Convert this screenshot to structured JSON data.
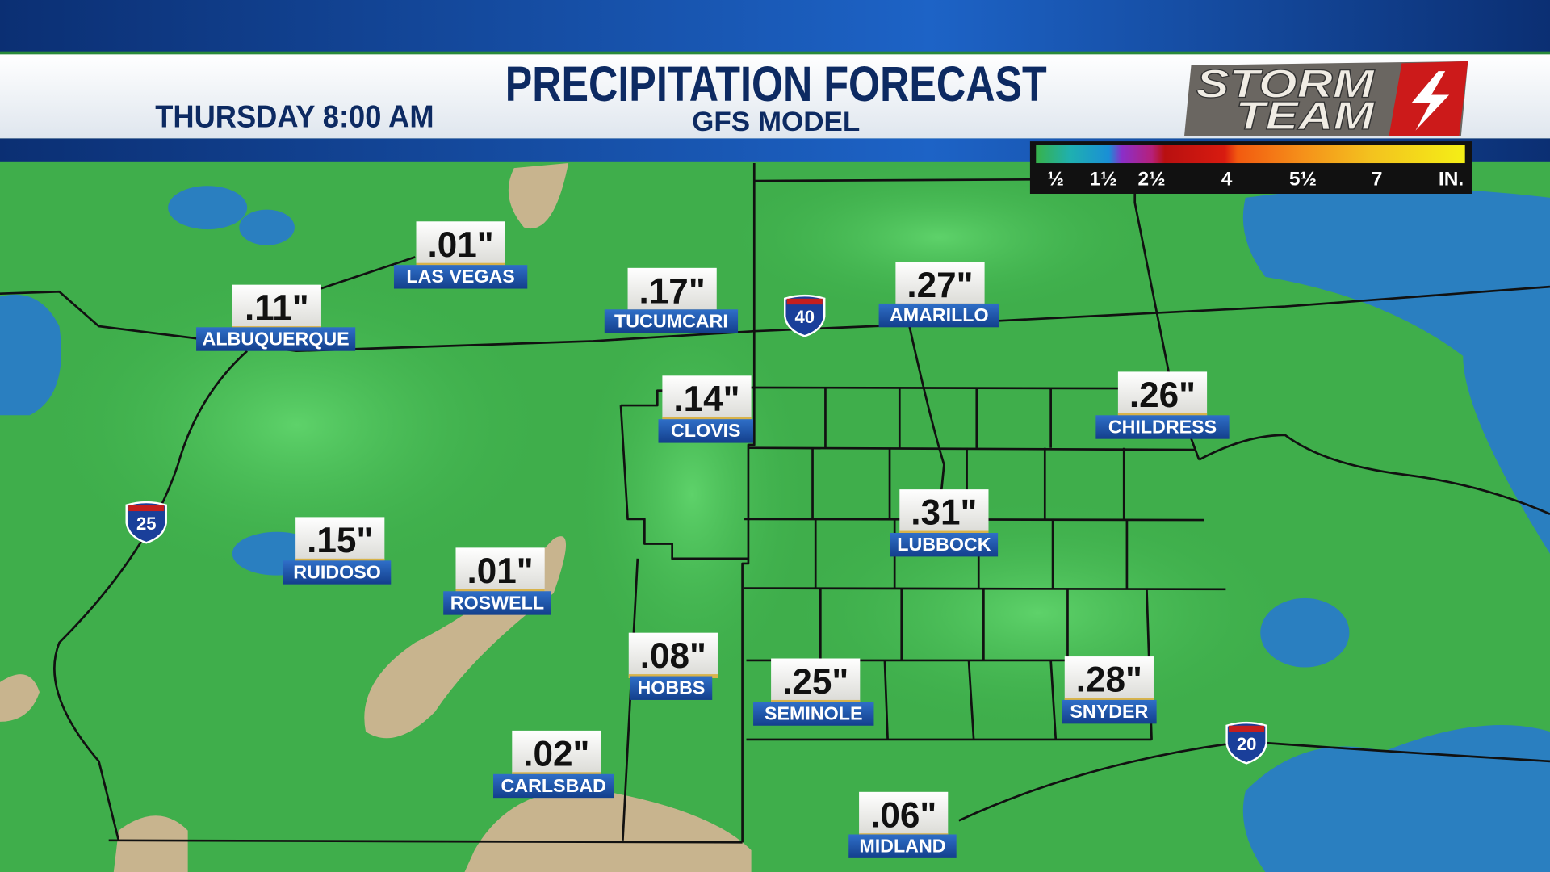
{
  "header": {
    "title": "PRECIPITATION FORECAST",
    "subtitle": "GFS MODEL",
    "time": "THURSDAY 8:00 AM",
    "logo": [
      "STORM",
      "TEAM"
    ]
  },
  "legend": {
    "labels": [
      "½",
      "1½",
      "2½",
      "4",
      "5½",
      "7",
      "IN."
    ]
  },
  "highways": [
    "40",
    "25",
    "20"
  ],
  "cities": [
    {
      "name": "LAS VEGAS",
      "amount": ".01\""
    },
    {
      "name": "ALBUQUERQUE",
      "amount": ".11\""
    },
    {
      "name": "TUCUMCARI",
      "amount": ".17\""
    },
    {
      "name": "AMARILLO",
      "amount": ".27\""
    },
    {
      "name": "CLOVIS",
      "amount": ".14\""
    },
    {
      "name": "CHILDRESS",
      "amount": ".26\""
    },
    {
      "name": "LUBBOCK",
      "amount": ".31\""
    },
    {
      "name": "RUIDOSO",
      "amount": ".15\""
    },
    {
      "name": "ROSWELL",
      "amount": ".01\""
    },
    {
      "name": "HOBBS",
      "amount": ".08\""
    },
    {
      "name": "SEMINOLE",
      "amount": ".25\""
    },
    {
      "name": "SNYDER",
      "amount": ".28\""
    },
    {
      "name": "CARLSBAD",
      "amount": ".02\""
    },
    {
      "name": "MIDLAND",
      "amount": ".06\""
    }
  ]
}
